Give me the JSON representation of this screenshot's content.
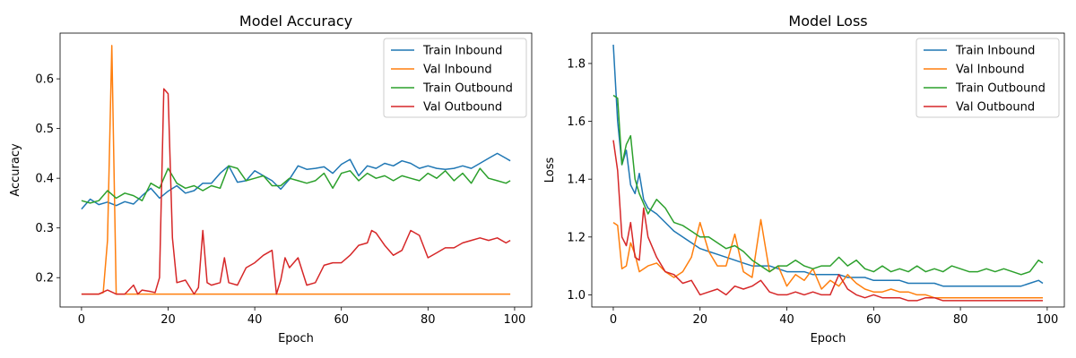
{
  "chart_data": [
    {
      "type": "line",
      "title": "Model Accuracy",
      "xlabel": "Epoch",
      "ylabel": "Accuracy",
      "xlim": [
        -4.95,
        103.95
      ],
      "ylim": [
        0.141,
        0.692
      ],
      "xticks": [
        0,
        20,
        40,
        60,
        80,
        100
      ],
      "yticks": [
        0.2,
        0.3,
        0.4,
        0.5,
        0.6
      ],
      "ytick_labels": [
        "0.2",
        "0.3",
        "0.4",
        "0.5",
        "0.6"
      ],
      "legend_position": "top-right",
      "grid": false,
      "series": [
        {
          "name": "Train Inbound",
          "color": "#1f77b4",
          "x": [
            0,
            2,
            4,
            6,
            8,
            10,
            12,
            14,
            16,
            18,
            20,
            22,
            24,
            26,
            28,
            30,
            32,
            34,
            36,
            38,
            40,
            42,
            44,
            46,
            48,
            50,
            52,
            54,
            56,
            58,
            60,
            62,
            64,
            66,
            68,
            70,
            72,
            74,
            76,
            78,
            80,
            82,
            84,
            86,
            88,
            90,
            92,
            94,
            96,
            98,
            99
          ],
          "values": [
            0.338,
            0.358,
            0.347,
            0.352,
            0.345,
            0.353,
            0.348,
            0.365,
            0.38,
            0.36,
            0.374,
            0.385,
            0.37,
            0.375,
            0.39,
            0.39,
            0.41,
            0.425,
            0.392,
            0.395,
            0.415,
            0.405,
            0.395,
            0.378,
            0.398,
            0.425,
            0.418,
            0.42,
            0.423,
            0.41,
            0.428,
            0.438,
            0.405,
            0.425,
            0.42,
            0.43,
            0.425,
            0.435,
            0.43,
            0.42,
            0.425,
            0.42,
            0.418,
            0.42,
            0.425,
            0.42,
            0.43,
            0.44,
            0.45,
            0.44,
            0.435
          ]
        },
        {
          "name": "Val Inbound",
          "color": "#ff7f0e",
          "x": [
            0,
            2,
            4,
            5,
            6,
            7,
            8,
            10,
            20,
            40,
            60,
            80,
            99
          ],
          "values": [
            0.167,
            0.167,
            0.167,
            0.17,
            0.275,
            0.667,
            0.167,
            0.167,
            0.167,
            0.167,
            0.167,
            0.167,
            0.167
          ]
        },
        {
          "name": "Train Outbound",
          "color": "#2ca02c",
          "x": [
            0,
            2,
            4,
            6,
            8,
            10,
            12,
            14,
            16,
            18,
            20,
            22,
            24,
            26,
            28,
            30,
            32,
            34,
            36,
            38,
            40,
            42,
            44,
            46,
            48,
            50,
            52,
            54,
            56,
            58,
            60,
            62,
            64,
            66,
            68,
            70,
            72,
            74,
            76,
            78,
            80,
            82,
            84,
            86,
            88,
            90,
            92,
            94,
            96,
            98,
            99
          ],
          "values": [
            0.355,
            0.35,
            0.355,
            0.375,
            0.36,
            0.37,
            0.365,
            0.355,
            0.39,
            0.38,
            0.42,
            0.39,
            0.38,
            0.385,
            0.375,
            0.385,
            0.38,
            0.425,
            0.42,
            0.395,
            0.4,
            0.405,
            0.385,
            0.385,
            0.4,
            0.395,
            0.39,
            0.395,
            0.41,
            0.38,
            0.41,
            0.415,
            0.395,
            0.41,
            0.4,
            0.405,
            0.395,
            0.405,
            0.4,
            0.395,
            0.41,
            0.4,
            0.415,
            0.395,
            0.41,
            0.39,
            0.42,
            0.4,
            0.395,
            0.39,
            0.395
          ]
        },
        {
          "name": "Val Outbound",
          "color": "#d62728",
          "x": [
            0,
            2,
            4,
            6,
            8,
            10,
            12,
            13,
            14,
            16,
            17,
            18,
            19,
            20,
            21,
            22,
            24,
            26,
            27,
            28,
            29,
            30,
            32,
            33,
            34,
            36,
            38,
            40,
            42,
            44,
            45,
            46,
            47,
            48,
            50,
            52,
            54,
            56,
            58,
            60,
            62,
            64,
            66,
            67,
            68,
            70,
            72,
            74,
            76,
            78,
            80,
            82,
            84,
            86,
            88,
            90,
            92,
            94,
            96,
            98,
            99
          ],
          "values": [
            0.167,
            0.167,
            0.167,
            0.175,
            0.167,
            0.167,
            0.185,
            0.167,
            0.175,
            0.172,
            0.17,
            0.2,
            0.58,
            0.57,
            0.28,
            0.19,
            0.195,
            0.167,
            0.18,
            0.295,
            0.19,
            0.185,
            0.19,
            0.24,
            0.19,
            0.185,
            0.22,
            0.23,
            0.245,
            0.255,
            0.167,
            0.195,
            0.24,
            0.22,
            0.24,
            0.185,
            0.19,
            0.225,
            0.23,
            0.23,
            0.245,
            0.265,
            0.27,
            0.295,
            0.29,
            0.265,
            0.245,
            0.255,
            0.295,
            0.285,
            0.24,
            0.25,
            0.26,
            0.26,
            0.27,
            0.275,
            0.28,
            0.275,
            0.28,
            0.27,
            0.275
          ]
        }
      ]
    },
    {
      "type": "line",
      "title": "Model Loss",
      "xlabel": "Epoch",
      "ylabel": "Loss",
      "xlim": [
        -4.95,
        103.95
      ],
      "ylim": [
        0.958,
        1.905
      ],
      "xticks": [
        0,
        20,
        40,
        60,
        80,
        100
      ],
      "yticks": [
        1.0,
        1.2,
        1.4,
        1.6,
        1.8
      ],
      "ytick_labels": [
        "1.0",
        "1.2",
        "1.4",
        "1.6",
        "1.8"
      ],
      "legend_position": "top-right",
      "grid": false,
      "series": [
        {
          "name": "Train Inbound",
          "color": "#1f77b4",
          "x": [
            0,
            1,
            2,
            3,
            4,
            5,
            6,
            7,
            8,
            10,
            12,
            14,
            16,
            18,
            20,
            22,
            24,
            26,
            28,
            30,
            32,
            34,
            36,
            38,
            40,
            42,
            44,
            46,
            48,
            50,
            52,
            54,
            56,
            58,
            60,
            62,
            64,
            66,
            68,
            70,
            72,
            74,
            76,
            78,
            80,
            82,
            84,
            86,
            88,
            90,
            92,
            94,
            96,
            98,
            99
          ],
          "values": [
            1.865,
            1.6,
            1.45,
            1.5,
            1.38,
            1.35,
            1.42,
            1.33,
            1.3,
            1.28,
            1.25,
            1.22,
            1.2,
            1.18,
            1.16,
            1.15,
            1.14,
            1.13,
            1.12,
            1.11,
            1.1,
            1.1,
            1.1,
            1.09,
            1.08,
            1.08,
            1.08,
            1.07,
            1.07,
            1.07,
            1.07,
            1.06,
            1.06,
            1.06,
            1.05,
            1.05,
            1.05,
            1.05,
            1.04,
            1.04,
            1.04,
            1.04,
            1.03,
            1.03,
            1.03,
            1.03,
            1.03,
            1.03,
            1.03,
            1.03,
            1.03,
            1.03,
            1.04,
            1.05,
            1.04
          ]
        },
        {
          "name": "Val Inbound",
          "color": "#ff7f0e",
          "x": [
            0,
            1,
            2,
            3,
            4,
            5,
            6,
            8,
            10,
            12,
            14,
            16,
            18,
            20,
            22,
            24,
            26,
            28,
            30,
            32,
            34,
            36,
            38,
            40,
            42,
            44,
            46,
            48,
            50,
            52,
            54,
            56,
            58,
            60,
            62,
            64,
            66,
            68,
            70,
            72,
            74,
            76,
            78,
            80,
            82,
            84,
            86,
            88,
            90,
            92,
            94,
            96,
            98,
            99
          ],
          "values": [
            1.25,
            1.24,
            1.09,
            1.1,
            1.18,
            1.14,
            1.08,
            1.1,
            1.11,
            1.08,
            1.06,
            1.08,
            1.13,
            1.25,
            1.15,
            1.1,
            1.1,
            1.21,
            1.08,
            1.06,
            1.26,
            1.08,
            1.1,
            1.03,
            1.07,
            1.05,
            1.09,
            1.02,
            1.05,
            1.03,
            1.07,
            1.04,
            1.02,
            1.01,
            1.01,
            1.02,
            1.01,
            1.01,
            1.0,
            1.0,
            0.99,
            0.99,
            0.99,
            0.99,
            0.99,
            0.99,
            0.99,
            0.99,
            0.99,
            0.99,
            0.99,
            0.99,
            0.99,
            0.99
          ]
        },
        {
          "name": "Train Outbound",
          "color": "#2ca02c",
          "x": [
            0,
            1,
            2,
            3,
            4,
            5,
            6,
            8,
            10,
            12,
            14,
            16,
            18,
            20,
            22,
            24,
            26,
            28,
            30,
            32,
            34,
            36,
            38,
            40,
            42,
            44,
            46,
            48,
            50,
            52,
            54,
            56,
            58,
            60,
            62,
            64,
            66,
            68,
            70,
            72,
            74,
            76,
            78,
            80,
            82,
            84,
            86,
            88,
            90,
            92,
            94,
            96,
            98,
            99
          ],
          "values": [
            1.69,
            1.68,
            1.45,
            1.52,
            1.55,
            1.4,
            1.35,
            1.28,
            1.33,
            1.3,
            1.25,
            1.24,
            1.22,
            1.2,
            1.2,
            1.18,
            1.16,
            1.17,
            1.15,
            1.12,
            1.1,
            1.08,
            1.1,
            1.1,
            1.12,
            1.1,
            1.09,
            1.1,
            1.1,
            1.13,
            1.1,
            1.12,
            1.09,
            1.08,
            1.1,
            1.08,
            1.09,
            1.08,
            1.1,
            1.08,
            1.09,
            1.08,
            1.1,
            1.09,
            1.08,
            1.08,
            1.09,
            1.08,
            1.09,
            1.08,
            1.07,
            1.08,
            1.12,
            1.11
          ]
        },
        {
          "name": "Val Outbound",
          "color": "#d62728",
          "x": [
            0,
            1,
            2,
            3,
            4,
            5,
            6,
            7,
            8,
            10,
            12,
            14,
            16,
            18,
            20,
            22,
            24,
            26,
            28,
            30,
            32,
            34,
            36,
            38,
            40,
            42,
            44,
            46,
            48,
            50,
            52,
            54,
            56,
            58,
            60,
            62,
            64,
            66,
            68,
            70,
            72,
            74,
            76,
            78,
            80,
            82,
            84,
            86,
            88,
            90,
            92,
            94,
            96,
            98,
            99
          ],
          "values": [
            1.535,
            1.43,
            1.2,
            1.17,
            1.25,
            1.13,
            1.12,
            1.3,
            1.2,
            1.13,
            1.08,
            1.07,
            1.04,
            1.05,
            1.0,
            1.01,
            1.02,
            1.0,
            1.03,
            1.02,
            1.03,
            1.05,
            1.01,
            1.0,
            1.0,
            1.01,
            1.0,
            1.01,
            1.0,
            1.0,
            1.07,
            1.02,
            1.0,
            0.99,
            1.0,
            0.99,
            0.99,
            0.99,
            0.98,
            0.98,
            0.99,
            0.99,
            0.98,
            0.98,
            0.98,
            0.98,
            0.98,
            0.98,
            0.98,
            0.98,
            0.98,
            0.98,
            0.98,
            0.98,
            0.98
          ]
        }
      ]
    }
  ]
}
